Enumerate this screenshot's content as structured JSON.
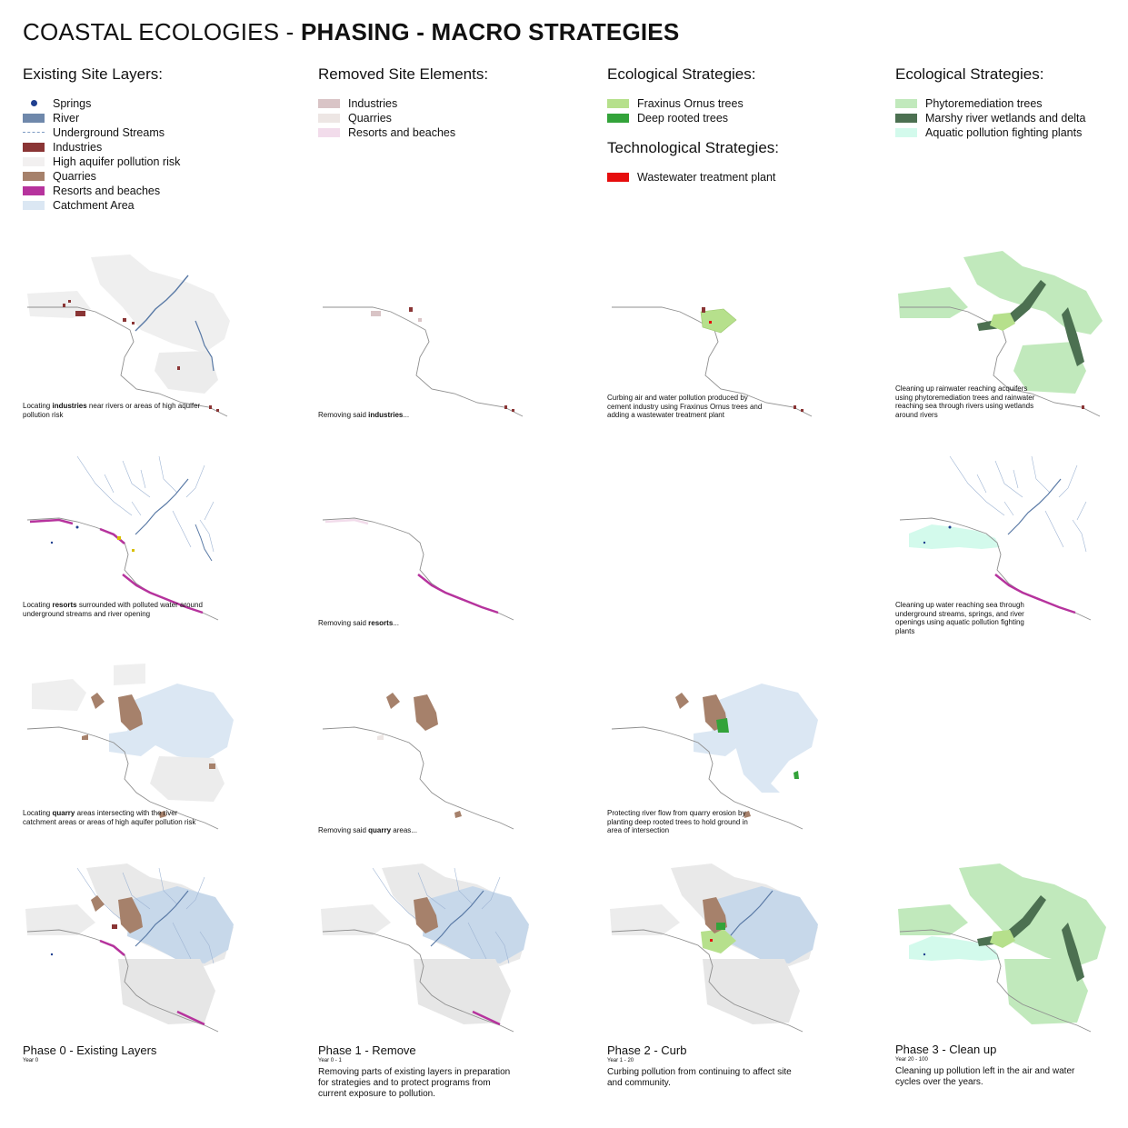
{
  "title": {
    "regular": "COASTAL ECOLOGIES - ",
    "bold": "PHASING - MACRO STRATEGIES"
  },
  "legends": {
    "existing": {
      "heading": "Existing Site Layers:",
      "items": [
        "Springs",
        "River",
        "Underground Streams",
        "Industries",
        "High aquifer pollution risk",
        "Quarries",
        "Resorts and beaches",
        "Catchment Area"
      ]
    },
    "removed": {
      "heading": "Removed Site Elements:",
      "items": [
        "Industries",
        "Quarries",
        "Resorts and beaches"
      ]
    },
    "ecological": {
      "heading": "Ecological Strategies:",
      "items": [
        "Fraxinus Ornus trees",
        "Deep rooted trees"
      ]
    },
    "technological": {
      "heading": "Technological Strategies:",
      "items": [
        "Wastewater treatment plant"
      ]
    },
    "ecological2": {
      "heading": "Ecological Strategies:",
      "items": [
        "Phytoremediation trees",
        "Marshy river wetlands and delta",
        "Aquatic pollution fighting plants"
      ]
    }
  },
  "colors": {
    "spring": "#1f3f8f",
    "river": "#6f88ab",
    "stream": "#7e9cc4",
    "industry": "#8a3535",
    "aquifer": "#f2f0f0",
    "quarry": "#a6816b",
    "resort": "#b6339d",
    "catchment": "#dbe7f3",
    "rem_industry": "#d9c4c6",
    "rem_quarry": "#ede6e4",
    "rem_resort": "#f2dceb",
    "fraxinus": "#b6e08c",
    "deep": "#33a33a",
    "wwtp": "#e60d0d",
    "phyto": "#c1e9bc",
    "marsh": "#4c7051",
    "aquatic": "#d3faec"
  },
  "captions": {
    "r1c1": {
      "pre": "Locating ",
      "bold": "industries",
      "post": " near rivers or areas of high aquifer pollution risk"
    },
    "r1c2": {
      "pre": "Removing said ",
      "bold": "industries",
      "post": "..."
    },
    "r1c3": {
      "pre": "Curbing air and water pollution produced by cement industry using Fraxinus Ornus trees and adding a wastewater treatment plant",
      "bold": "",
      "post": ""
    },
    "r1c4": {
      "pre": "Cleaning up rainwater reaching acquifers using phytoremediation trees and rainwater reaching sea through rivers using wetlands around rivers",
      "bold": "",
      "post": ""
    },
    "r2c1": {
      "pre": "Locating ",
      "bold": "resorts",
      "post": " surrounded with polluted water around underground streams and river opening"
    },
    "r2c2": {
      "pre": "Removing said ",
      "bold": "resorts",
      "post": "..."
    },
    "r2c4": {
      "pre": "Cleaning up water reaching sea through underground streams, springs, and river openings using aquatic pollution fighting plants",
      "bold": "",
      "post": ""
    },
    "r3c1": {
      "pre": "Locating ",
      "bold": "quarry",
      "post": " areas intersecting with the river catchment areas or areas of high aquifer pollution risk"
    },
    "r3c2": {
      "pre": "Removing said ",
      "bold": "quarry",
      "post": " areas..."
    },
    "r3c3": {
      "pre": "Protecting river flow from quarry erosion by planting deep rooted trees to hold ground in area of intersection",
      "bold": "",
      "post": ""
    }
  },
  "phases": [
    {
      "title": "Phase 0 - Existing Layers",
      "years": "Year 0",
      "desc": ""
    },
    {
      "title": "Phase 1 - Remove",
      "years": "Year 0 - 1",
      "desc": "Removing parts of existing layers in preparation for strategies and to protect programs from current exposure to pollution."
    },
    {
      "title": "Phase 2 - Curb",
      "years": "Year 1 - 20",
      "desc": "Curbing pollution from continuing to affect site and community."
    },
    {
      "title": "Phase 3 - Clean up",
      "years": "Year 20 - 100",
      "desc": "Cleaning up pollution left in the air and water cycles over the years."
    }
  ]
}
